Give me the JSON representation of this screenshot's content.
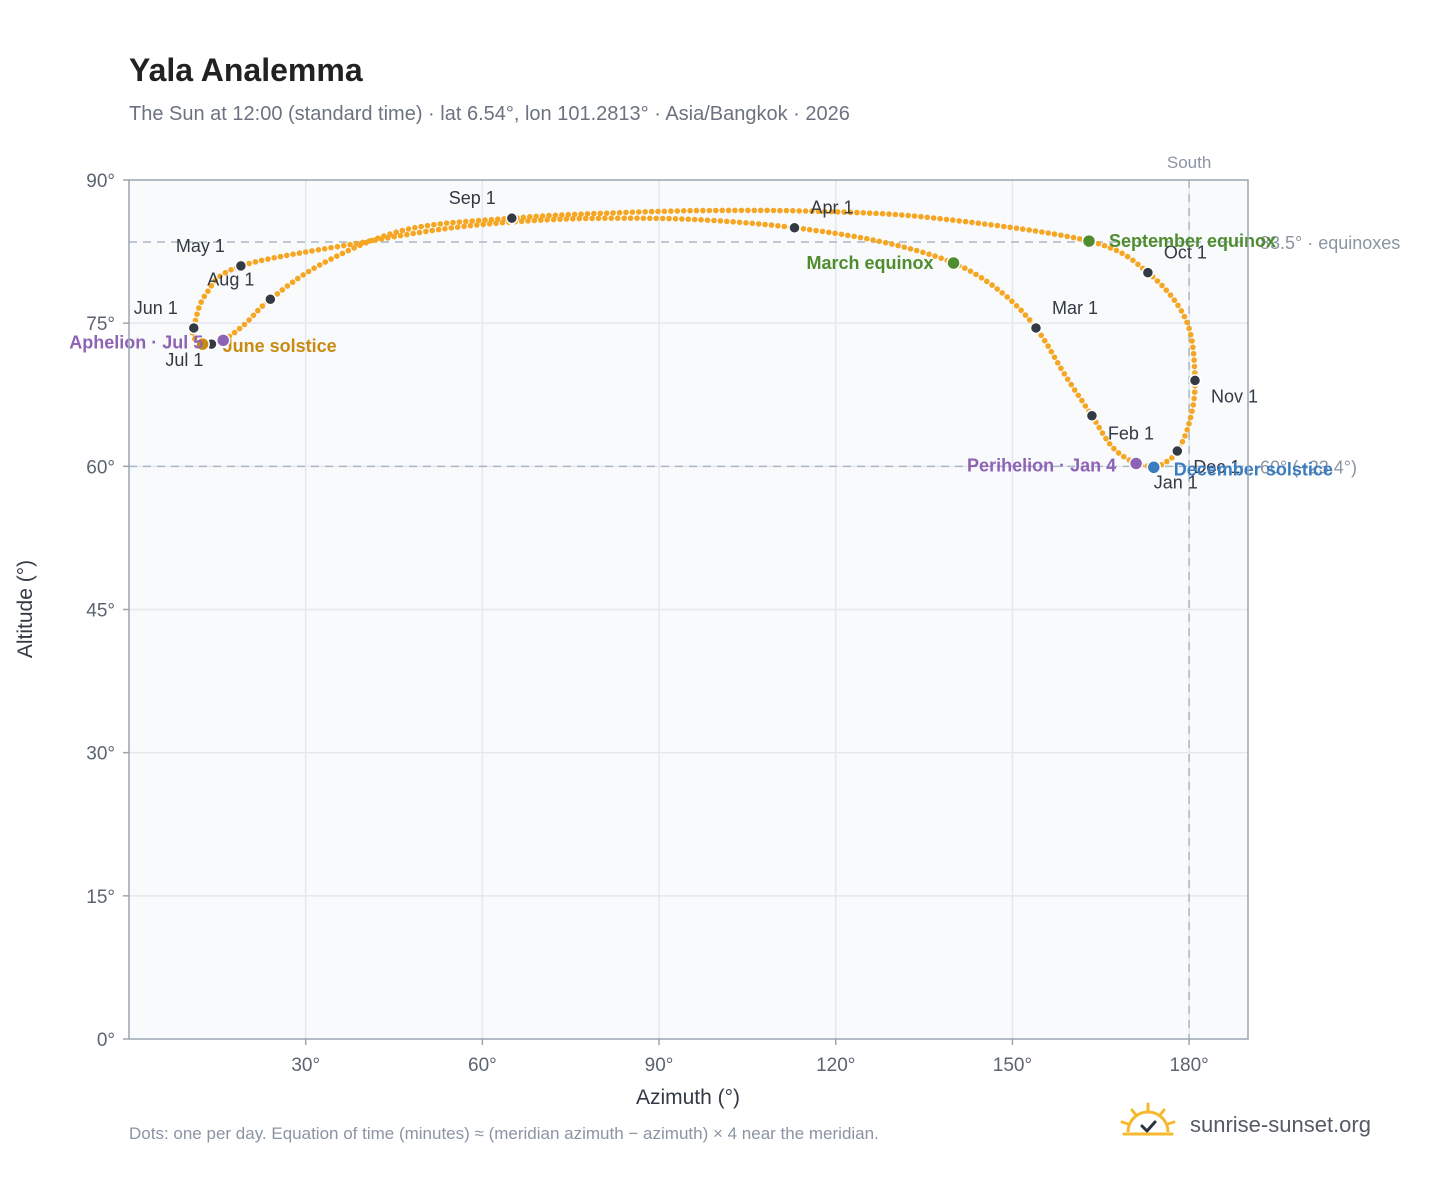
{
  "header": {
    "title": "Yala Analemma",
    "subtitle": "The Sun at 12:00 (standard time) · lat 6.54°, lon 101.2813° · Asia/Bangkok · 2026"
  },
  "footer": {
    "note": "Dots: one per day. Equation of time (minutes) ≈ (meridian azimuth − azimuth) × 4 near the meridian.",
    "brand": "sunrise-sunset.org"
  },
  "colors": {
    "curve": "#f5a623",
    "month_marker": "#333a44",
    "equinox": "#4e8c2f",
    "solstice_june": "#c98a10",
    "solstice_december": "#3b7bbf",
    "apsis": "#8e63b5",
    "reference_line": "#a9b7c6",
    "plot_background": "#f8fafc",
    "axis_frame": "#9aa6b2"
  },
  "chart_data": {
    "type": "scatter",
    "xlabel": "Azimuth (°)",
    "ylabel": "Altitude (°)",
    "xlim": [
      0,
      190
    ],
    "ylim": [
      0,
      90
    ],
    "x_ticks": [
      30,
      60,
      90,
      120,
      150,
      180
    ],
    "x_tick_labels": [
      "30°",
      "60°",
      "90°",
      "120°",
      "150°",
      "180°"
    ],
    "y_ticks": [
      0,
      15,
      30,
      45,
      60,
      75,
      90
    ],
    "y_tick_labels": [
      "0°",
      "15°",
      "30°",
      "45°",
      "60°",
      "75°",
      "90°"
    ],
    "grid": true,
    "south_line": {
      "azimuth": 180,
      "label": "South"
    },
    "reference_lines": [
      {
        "altitude": 83.5,
        "label": "83.5° · equinoxes"
      },
      {
        "altitude": 60.0,
        "label": "60° (−23.4°)"
      }
    ],
    "analemma_path": [
      {
        "date": "Jan 1",
        "az": 174.0,
        "alt": 60.0
      },
      {
        "date": "Jan 4",
        "az": 171.0,
        "alt": 60.3
      },
      {
        "date": "Jan 15",
        "az": 167.0,
        "alt": 62.0
      },
      {
        "date": "Feb 1",
        "az": 163.5,
        "alt": 65.3
      },
      {
        "date": "Feb 15",
        "az": 159.0,
        "alt": 69.5
      },
      {
        "date": "Mar 1",
        "az": 154.0,
        "alt": 74.5
      },
      {
        "date": "Mar 10",
        "az": 148.0,
        "alt": 78.3
      },
      {
        "date": "Mar 20",
        "az": 140.0,
        "alt": 81.3
      },
      {
        "date": "Mar 27",
        "az": 128.0,
        "alt": 83.5
      },
      {
        "date": "Apr 1",
        "az": 113.0,
        "alt": 85.0
      },
      {
        "date": "Apr 6",
        "az": 98.0,
        "alt": 85.8
      },
      {
        "date": "Apr 11",
        "az": 84.0,
        "alt": 86.0
      },
      {
        "date": "Apr 16",
        "az": 70.0,
        "alt": 85.8
      },
      {
        "date": "Apr 21",
        "az": 55.0,
        "alt": 85.0
      },
      {
        "date": "Apr 26",
        "az": 40.0,
        "alt": 83.5
      },
      {
        "date": "May 1",
        "az": 19.0,
        "alt": 81.0
      },
      {
        "date": "May 15",
        "az": 13.0,
        "alt": 78.0
      },
      {
        "date": "Jun 1",
        "az": 11.0,
        "alt": 74.5
      },
      {
        "date": "Jun 10",
        "az": 11.0,
        "alt": 73.5
      },
      {
        "date": "Jun 21",
        "az": 12.5,
        "alt": 72.8
      },
      {
        "date": "Jul 1",
        "az": 14.0,
        "alt": 72.8
      },
      {
        "date": "Jul 5",
        "az": 16.0,
        "alt": 73.2
      },
      {
        "date": "Jul 15",
        "az": 19.5,
        "alt": 74.8
      },
      {
        "date": "Aug 1",
        "az": 24.0,
        "alt": 77.5
      },
      {
        "date": "Aug 10",
        "az": 33.0,
        "alt": 81.3
      },
      {
        "date": "Aug 20",
        "az": 47.0,
        "alt": 84.8
      },
      {
        "date": "Sep 1",
        "az": 65.0,
        "alt": 86.0
      },
      {
        "date": "Sep 6",
        "az": 80.0,
        "alt": 86.5
      },
      {
        "date": "Sep 11",
        "az": 98.0,
        "alt": 86.8
      },
      {
        "date": "Sep 16",
        "az": 118.0,
        "alt": 86.7
      },
      {
        "date": "Sep 21",
        "az": 137.0,
        "alt": 86.0
      },
      {
        "date": "Sep 23",
        "az": 163.0,
        "alt": 83.6
      },
      {
        "date": "Oct 1",
        "az": 173.0,
        "alt": 80.3
      },
      {
        "date": "Oct 15",
        "az": 179.5,
        "alt": 75.3
      },
      {
        "date": "Nov 1",
        "az": 181.0,
        "alt": 69.0
      },
      {
        "date": "Nov 15",
        "az": 180.0,
        "alt": 64.5
      },
      {
        "date": "Dec 1",
        "az": 178.0,
        "alt": 61.6
      },
      {
        "date": "Dec 10",
        "az": 176.0,
        "alt": 60.4
      },
      {
        "date": "Dec 21",
        "az": 174.0,
        "alt": 59.9
      },
      {
        "date": "Dec 31",
        "az": 174.0,
        "alt": 60.0
      }
    ],
    "month_markers": [
      {
        "label": "Jan 1",
        "az": 174.0,
        "alt": 60.0,
        "anchor": "start",
        "dx": 0,
        "dy": 22
      },
      {
        "label": "Feb 1",
        "az": 163.5,
        "alt": 65.3,
        "anchor": "start",
        "dx": 16,
        "dy": 24
      },
      {
        "label": "Mar 1",
        "az": 154.0,
        "alt": 74.5,
        "anchor": "start",
        "dx": 16,
        "dy": -14
      },
      {
        "label": "Apr 1",
        "az": 113.0,
        "alt": 85.0,
        "anchor": "start",
        "dx": 16,
        "dy": -14
      },
      {
        "label": "May 1",
        "az": 19.0,
        "alt": 81.0,
        "anchor": "end",
        "dx": -16,
        "dy": -14
      },
      {
        "label": "Jun 1",
        "az": 11.0,
        "alt": 74.5,
        "anchor": "end",
        "dx": -16,
        "dy": -14
      },
      {
        "label": "Jul 1",
        "az": 14.0,
        "alt": 72.8,
        "anchor": "end",
        "dx": -8,
        "dy": 22
      },
      {
        "label": "Aug 1",
        "az": 24.0,
        "alt": 77.5,
        "anchor": "end",
        "dx": -16,
        "dy": -14
      },
      {
        "label": "Sep 1",
        "az": 65.0,
        "alt": 86.0,
        "anchor": "end",
        "dx": -16,
        "dy": -14
      },
      {
        "label": "Oct 1",
        "az": 173.0,
        "alt": 80.3,
        "anchor": "start",
        "dx": 16,
        "dy": -14
      },
      {
        "label": "Nov 1",
        "az": 181.0,
        "alt": 69.0,
        "anchor": "start",
        "dx": 16,
        "dy": 22
      },
      {
        "label": "Dec 1",
        "az": 178.0,
        "alt": 61.6,
        "anchor": "start",
        "dx": 16,
        "dy": 22
      }
    ],
    "events": [
      {
        "label": "March equinox",
        "az": 140.0,
        "alt": 81.3,
        "kind": "equinox",
        "anchor": "end",
        "dx": -20,
        "dy": 6
      },
      {
        "label": "September equinox",
        "az": 163.0,
        "alt": 83.6,
        "kind": "equinox",
        "anchor": "start",
        "dx": 20,
        "dy": 6
      },
      {
        "label": "June solstice",
        "az": 12.5,
        "alt": 72.8,
        "kind": "solstice_june",
        "anchor": "start",
        "dx": 20,
        "dy": 8
      },
      {
        "label": "December solstice",
        "az": 174.0,
        "alt": 59.9,
        "kind": "solstice_december",
        "anchor": "start",
        "dx": 20,
        "dy": 8
      },
      {
        "label": "Aphelion · Jul 5",
        "az": 16.0,
        "alt": 73.2,
        "kind": "apsis",
        "anchor": "end",
        "dx": -20,
        "dy": 8
      },
      {
        "label": "Perihelion · Jan 4",
        "az": 171.0,
        "alt": 60.3,
        "kind": "apsis",
        "anchor": "end",
        "dx": -20,
        "dy": 8
      }
    ]
  }
}
